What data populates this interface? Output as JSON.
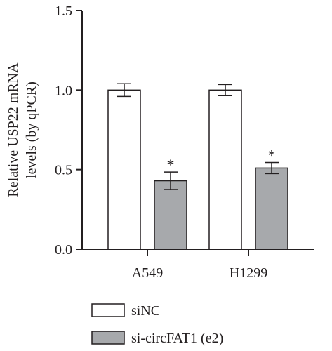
{
  "chart_data": {
    "type": "bar",
    "categories": [
      "A549",
      "H1299"
    ],
    "series": [
      {
        "name": "siNC",
        "values": [
          1.0,
          1.0
        ],
        "errors": [
          0.04,
          0.035
        ],
        "color": "#ffffff"
      },
      {
        "name": "si-circFAT1 (e2)",
        "values": [
          0.43,
          0.51
        ],
        "errors": [
          0.055,
          0.035
        ],
        "color": "#a7a9ac"
      }
    ],
    "annotations": [
      {
        "series": 1,
        "category": 0,
        "text": "*"
      },
      {
        "series": 1,
        "category": 1,
        "text": "*"
      }
    ],
    "ylabel_line1": "Relative USP22 mRNA",
    "ylabel_line2": "levels (by qPCR)",
    "xlabel": "",
    "ylim": [
      0,
      1.5
    ],
    "yticks": [
      "0.0",
      "0.5",
      "1.0",
      "1.5"
    ],
    "grid": false,
    "legend_position": "bottom",
    "colors": {
      "axis": "#231f20",
      "bar_edge": "#231f20"
    }
  }
}
